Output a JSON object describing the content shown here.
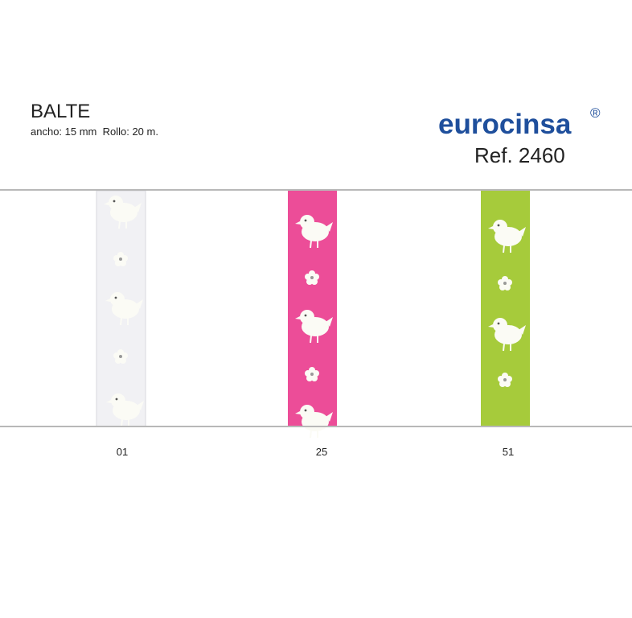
{
  "header": {
    "title": "BALTE",
    "specs": "ancho: 15 mm  Rollo: 20 m."
  },
  "brand": {
    "name": "eurocinsa",
    "registered": "®",
    "ref": "Ref. 2460"
  },
  "swatches": [
    {
      "code": "01"
    },
    {
      "code": "25"
    },
    {
      "code": "51"
    }
  ]
}
